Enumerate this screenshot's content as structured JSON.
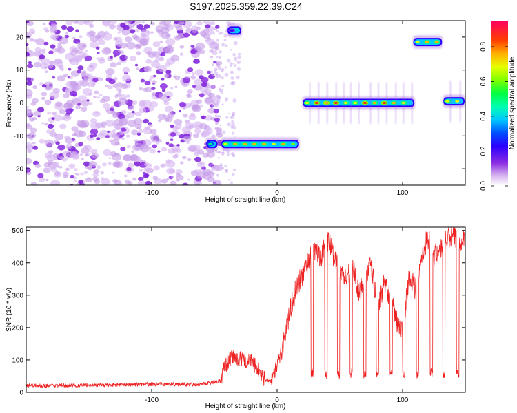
{
  "title": "S197.2025.359.22.39.C24",
  "chart_data": [
    {
      "type": "heatmap",
      "xlabel": "Height of straight line (km)",
      "ylabel": "Frequency (Hz)",
      "xlim": [
        -200,
        150
      ],
      "ylim": [
        -25,
        25
      ],
      "xticks": [
        -100,
        0,
        100
      ],
      "yticks": [
        -20,
        -10,
        0,
        10,
        20
      ],
      "colorbar": {
        "label": "Normalized spectral amplitude",
        "range": [
          0.0,
          0.95
        ],
        "ticks": [
          0.0,
          0.2,
          0.4,
          0.6,
          0.8
        ],
        "colors": [
          "#ffffff",
          "#c59be8",
          "#8a2be2",
          "#2b00ff",
          "#0050ff",
          "#00c8ff",
          "#00ff80",
          "#80ff00",
          "#e6ff00",
          "#ffb000",
          "#ff3000",
          "#ff0060"
        ]
      },
      "features": [
        {
          "kind": "noise",
          "x": [
            -200,
            -52
          ],
          "y": [
            -25,
            25
          ],
          "amplitude": 0.1
        },
        {
          "kind": "band",
          "x": [
            -57,
            -47
          ],
          "y_center": -12.5,
          "amplitude": 0.55
        },
        {
          "kind": "band",
          "x": [
            -45,
            18
          ],
          "y_center": -12.5,
          "amplitude": 0.75
        },
        {
          "kind": "band",
          "x": [
            -40,
            -28
          ],
          "y_center": 22,
          "amplitude": 0.3
        },
        {
          "kind": "band",
          "x": [
            20,
            110
          ],
          "y_center": 0,
          "amplitude": 0.9
        },
        {
          "kind": "band",
          "x": [
            108,
            132
          ],
          "y_center": 18.5,
          "amplitude": 0.8
        },
        {
          "kind": "band",
          "x": [
            132,
            150
          ],
          "y_center": 0.5,
          "amplitude": 0.7
        }
      ]
    },
    {
      "type": "line",
      "xlabel": "Height of straight line (km)",
      "ylabel": "SNR (10 * v/v)",
      "xlim": [
        -200,
        150
      ],
      "ylim": [
        0,
        510
      ],
      "xticks": [
        -100,
        0,
        100
      ],
      "yticks": [
        0,
        100,
        200,
        300,
        400,
        500
      ],
      "color": "#ee2222",
      "series": [
        {
          "x": [
            -200,
            -150,
            -100,
            -60,
            -45,
            -42,
            -35,
            -28,
            -20,
            -15,
            -10,
            -5,
            0,
            5,
            10,
            15,
            20,
            25,
            30,
            35,
            40,
            42,
            45,
            50,
            55,
            60,
            65,
            70,
            75,
            80,
            85,
            90,
            95,
            100,
            105,
            110,
            112,
            115,
            120,
            125,
            130,
            135,
            140,
            145,
            150
          ],
          "y": [
            20,
            22,
            25,
            25,
            35,
            80,
            110,
            100,
            95,
            70,
            40,
            35,
            80,
            150,
            250,
            320,
            360,
            410,
            440,
            420,
            470,
            460,
            420,
            380,
            350,
            400,
            300,
            360,
            390,
            270,
            330,
            300,
            220,
            180,
            360,
            320,
            340,
            420,
            480,
            420,
            440,
            470,
            480,
            470,
            480
          ]
        }
      ],
      "dropouts": [
        {
          "x": [
            27,
            29
          ],
          "y": 60
        },
        {
          "x": [
            38,
            40
          ],
          "y": 55
        },
        {
          "x": [
            48,
            50
          ],
          "y": 55
        },
        {
          "x": [
            58,
            60
          ],
          "y": 60
        },
        {
          "x": [
            69,
            71
          ],
          "y": 55
        },
        {
          "x": [
            79,
            81
          ],
          "y": 55
        },
        {
          "x": [
            90,
            92
          ],
          "y": 55
        },
        {
          "x": [
            100,
            102
          ],
          "y": 60
        },
        {
          "x": [
            111,
            113
          ],
          "y": 55
        },
        {
          "x": [
            122,
            124
          ],
          "y": 60
        },
        {
          "x": [
            132,
            134
          ],
          "y": 55
        },
        {
          "x": [
            143,
            145
          ],
          "y": 60
        }
      ]
    }
  ]
}
